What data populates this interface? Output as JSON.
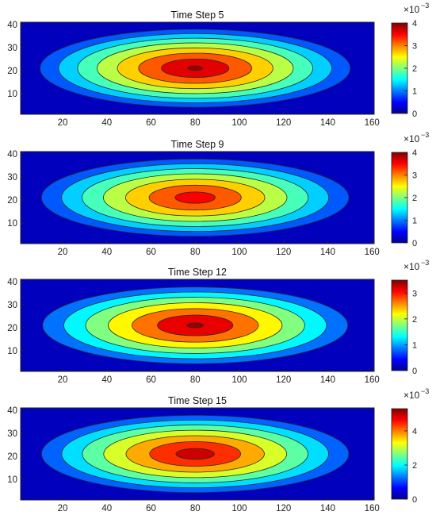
{
  "chart_data": [
    {
      "type": "heatmap",
      "title": "Time Step 5",
      "x_ticks": [
        "20",
        "40",
        "60",
        "80",
        "100",
        "120",
        "140",
        "160"
      ],
      "y_ticks": [
        "10",
        "20",
        "30",
        "40"
      ],
      "xlim": [
        1,
        161
      ],
      "ylim": [
        1,
        41
      ],
      "center": [
        80,
        21
      ],
      "peak": 0.0041,
      "contour_levels": [
        0.0005,
        0.001,
        0.0015,
        0.002,
        0.0025,
        0.003,
        0.0035,
        0.004
      ],
      "colorbar": {
        "min": 0,
        "max": 0.004,
        "ticks": [
          "0",
          "1",
          "2",
          "3",
          "4"
        ],
        "multiplier": "×10",
        "exponent": "−3"
      }
    },
    {
      "type": "heatmap",
      "title": "Time Step 9",
      "x_ticks": [
        "20",
        "40",
        "60",
        "80",
        "100",
        "120",
        "140",
        "160"
      ],
      "y_ticks": [
        "10",
        "20",
        "30",
        "40"
      ],
      "xlim": [
        1,
        161
      ],
      "ylim": [
        1,
        41
      ],
      "center": [
        80,
        21
      ],
      "peak": 0.0038,
      "contour_levels": [
        0.0005,
        0.001,
        0.0015,
        0.002,
        0.0025,
        0.003,
        0.0035
      ],
      "colorbar": {
        "min": 0,
        "max": 0.004,
        "ticks": [
          "0",
          "1",
          "2",
          "3",
          "4"
        ],
        "multiplier": "×10",
        "exponent": "−3"
      }
    },
    {
      "type": "heatmap",
      "title": "Time Step 12",
      "x_ticks": [
        "20",
        "40",
        "60",
        "80",
        "100",
        "120",
        "140",
        "160"
      ],
      "y_ticks": [
        "10",
        "20",
        "30",
        "40"
      ],
      "xlim": [
        1,
        161
      ],
      "ylim": [
        1,
        41
      ],
      "center": [
        80,
        21
      ],
      "peak": 0.0036,
      "contour_levels": [
        0.0005,
        0.001,
        0.0015,
        0.002,
        0.0025,
        0.003,
        0.0035
      ],
      "colorbar": {
        "min": 0,
        "max": 0.0035,
        "ticks": [
          "0",
          "1",
          "2",
          "3"
        ],
        "multiplier": "×10",
        "exponent": "−3"
      }
    },
    {
      "type": "heatmap",
      "title": "Time Step 15",
      "x_ticks": [
        "20",
        "40",
        "60",
        "80",
        "100",
        "120",
        "140",
        "160"
      ],
      "y_ticks": [
        "10",
        "20",
        "30",
        "40"
      ],
      "xlim": [
        1,
        161
      ],
      "ylim": [
        1,
        41
      ],
      "center": [
        80,
        21
      ],
      "peak": 0.0053,
      "contour_levels": [
        0.0007,
        0.0014,
        0.0021,
        0.0028,
        0.0035,
        0.0042,
        0.0049
      ],
      "colorbar": {
        "min": 0,
        "max": 0.0053,
        "ticks": [
          "0",
          "2",
          "4"
        ],
        "multiplier": "×10",
        "exponent": "−3"
      }
    }
  ]
}
